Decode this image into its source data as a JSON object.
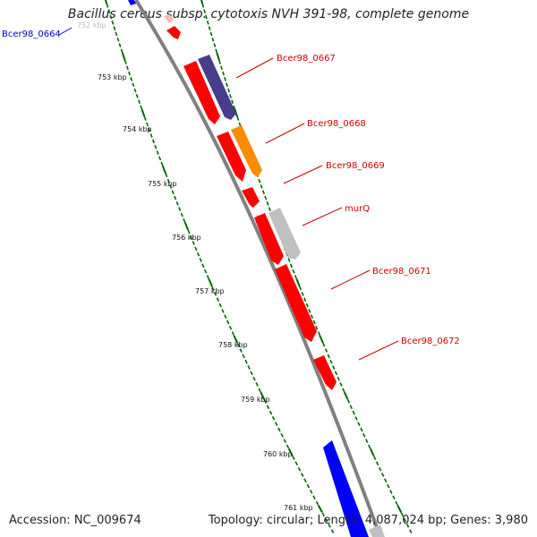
{
  "title": "Bacillus cereus subsp. cytotoxis NVH 391-98, complete genome",
  "accession": "Accession: NC_009674",
  "summary": "Topology: circular; Length: 4,087,024 bp; Genes: 3,980",
  "ticks": [
    "753 kbp",
    "754 kbp",
    "755 kbp",
    "756 kbp",
    "757 kbp",
    "758 kbp",
    "759 kbp",
    "760 kbp",
    "761 kbp"
  ],
  "gene_labels": [
    "Bcer98_0664",
    "Bcer98_0667",
    "Bcer98_0668",
    "Bcer98_0669",
    "murQ",
    "Bcer98_0671",
    "Bcer98_0672"
  ],
  "colors": {
    "cds_red": "#ff0000",
    "cds_blue": "#0000ff",
    "cds_purple": "#483d8b",
    "cds_orange": "#ff8c00",
    "cds_grey": "#c0c0c0",
    "backbone": "#808080",
    "tick_green": "#006400",
    "label_red": "#cc0000",
    "label_blue": "#0000cc"
  }
}
